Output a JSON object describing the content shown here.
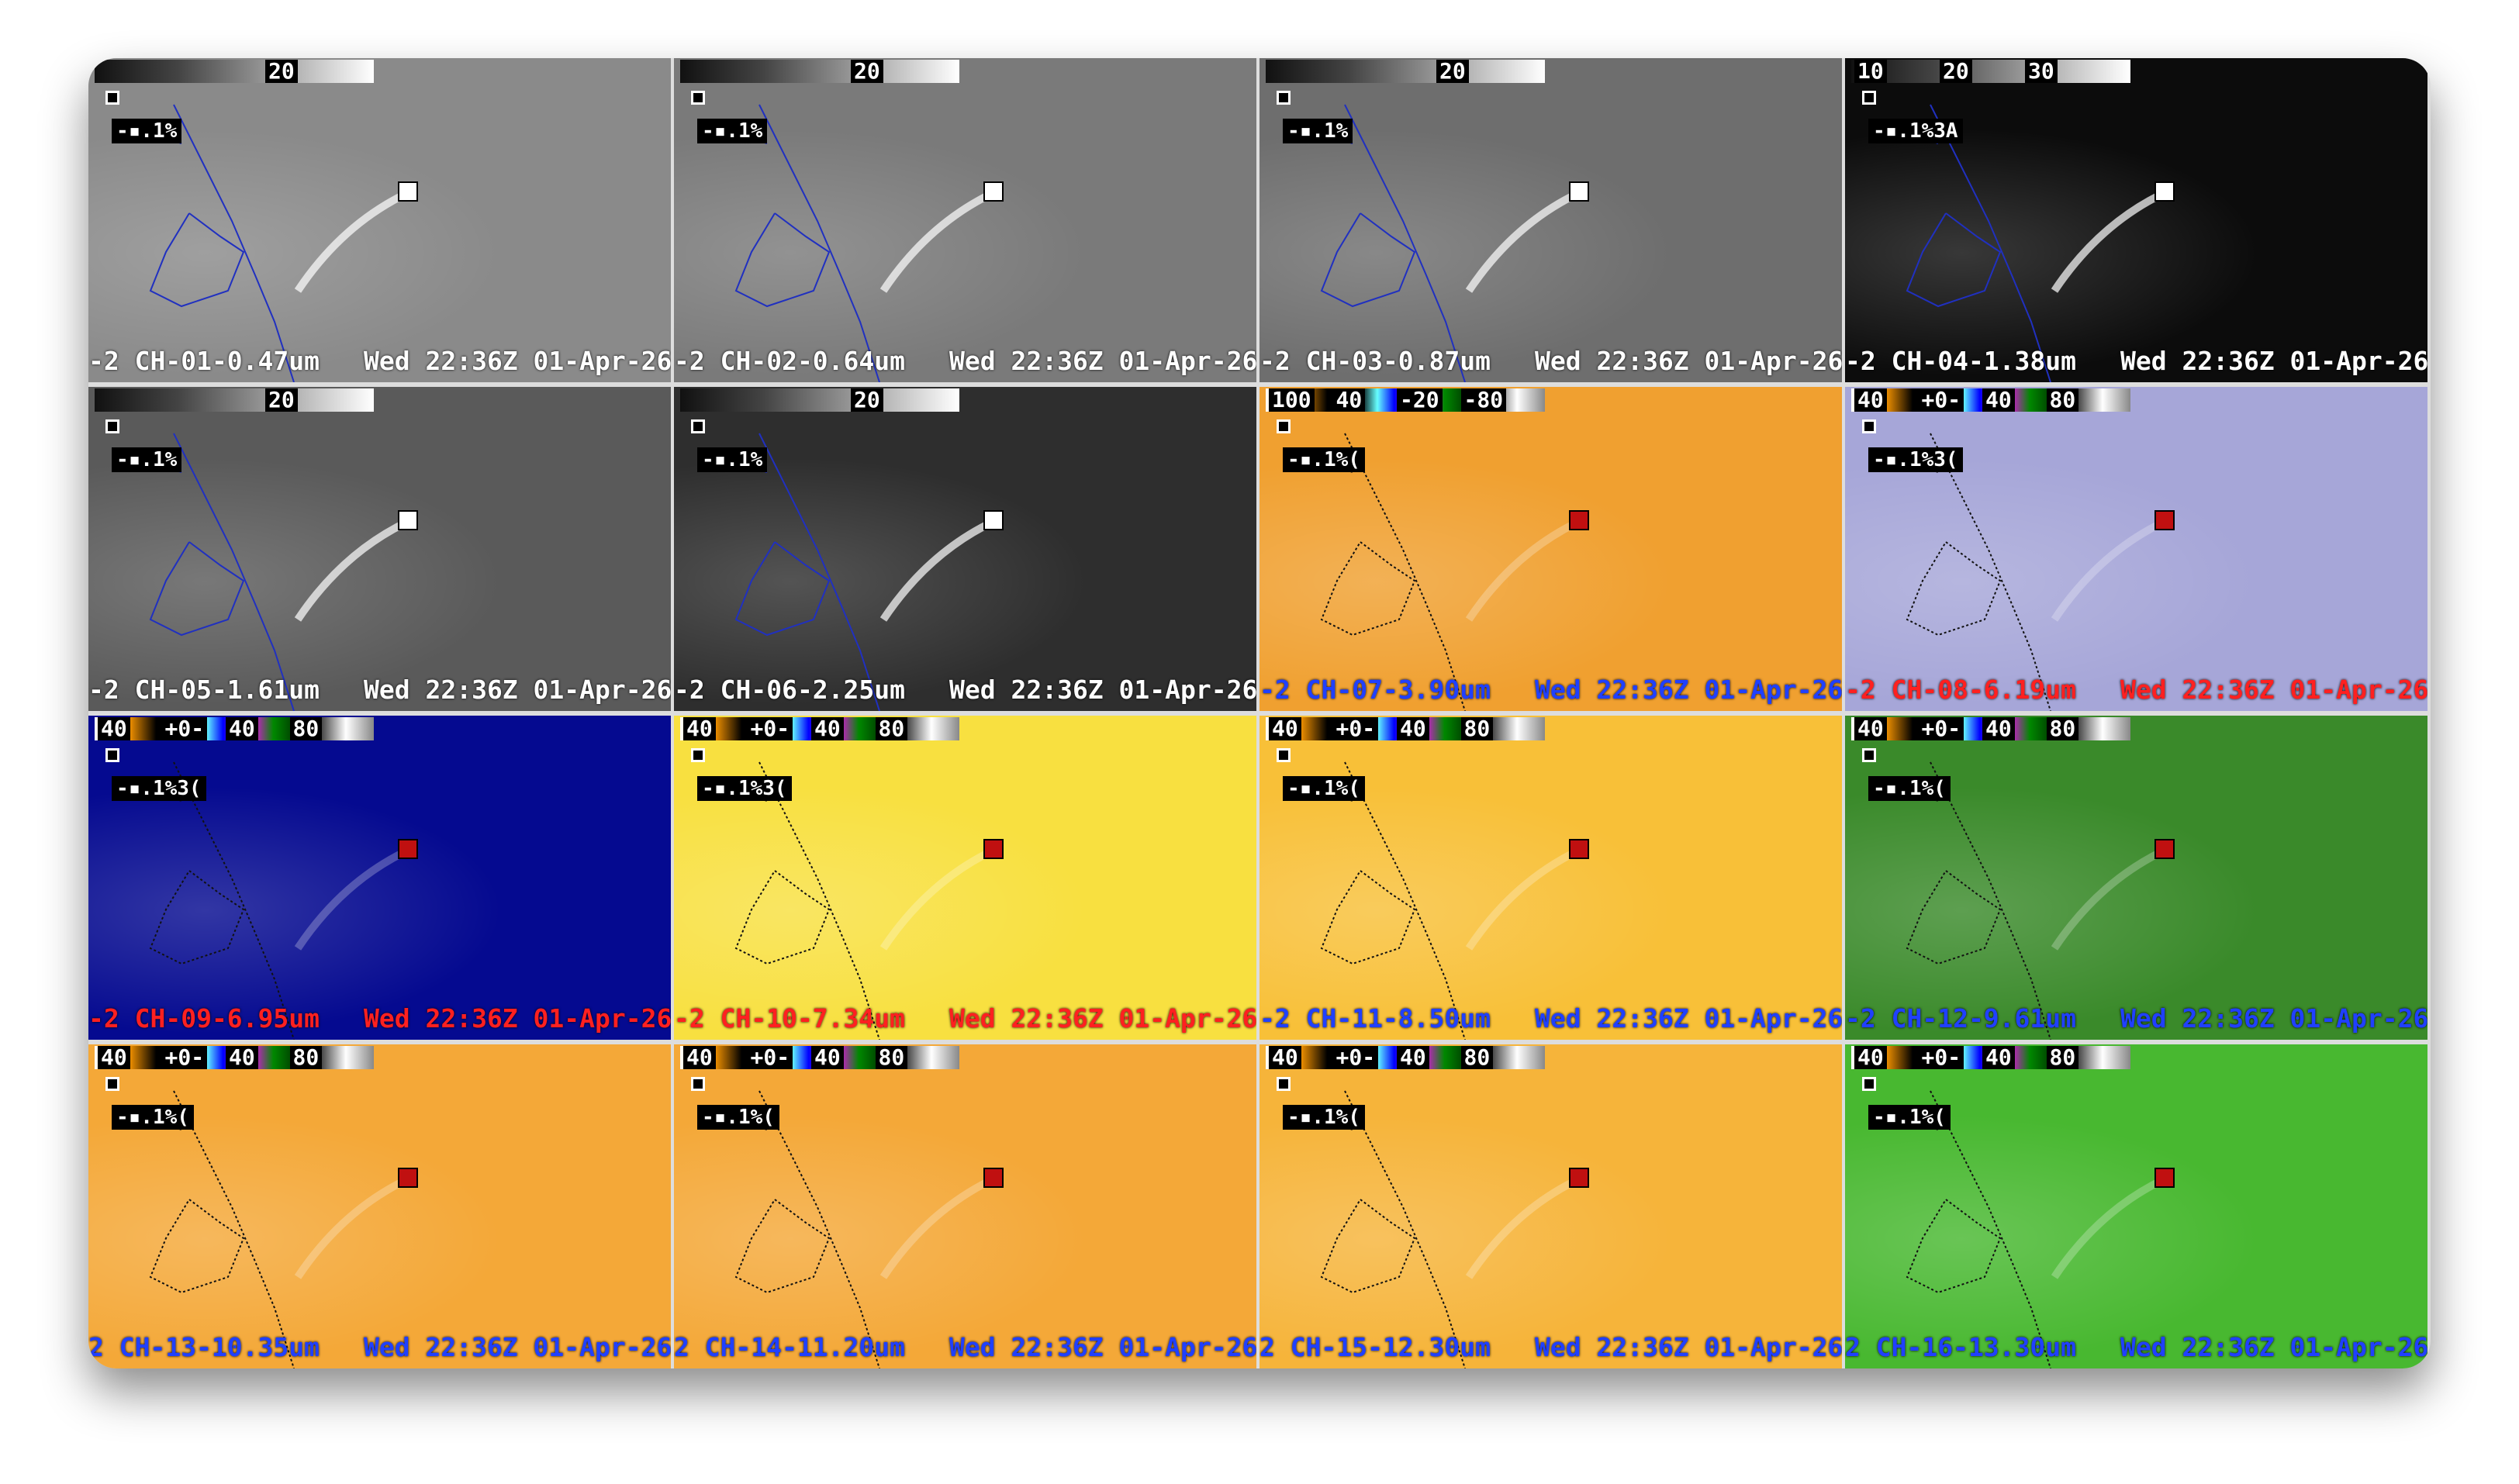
{
  "panels": [
    {
      "colorbar": [
        "20"
      ],
      "tag": "-▪.1%",
      "channel": "-2 CH-01-0.47um",
      "time": "Wed 22:36Z 01-Apr-26",
      "background": "#8a8a8a",
      "caption_color": "#ffffff"
    },
    {
      "colorbar": [
        "20"
      ],
      "tag": "-▪.1%",
      "channel": "-2 CH-02-0.64um",
      "time": "Wed 22:36Z 01-Apr-26",
      "background": "#7a7a7a",
      "caption_color": "#ffffff"
    },
    {
      "colorbar": [
        "20"
      ],
      "tag": "-▪.1%",
      "channel": "-2 CH-03-0.87um",
      "time": "Wed 22:36Z 01-Apr-26",
      "background": "#6e6e6e",
      "caption_color": "#ffffff"
    },
    {
      "colorbar": [
        "10",
        "20",
        "30"
      ],
      "tag": "-▪.1%3A",
      "channel": "-2 CH-04-1.38um",
      "time": "Wed 22:36Z 01-Apr-26",
      "background": "#0c0c0c",
      "caption_color": "#ffffff"
    },
    {
      "colorbar": [
        "20"
      ],
      "tag": "-▪.1%",
      "channel": "-2 CH-05-1.61um",
      "time": "Wed 22:36Z 01-Apr-26",
      "background": "#5a5a5a",
      "caption_color": "#ffffff"
    },
    {
      "colorbar": [
        "20"
      ],
      "tag": "-▪.1%",
      "channel": "-2 CH-06-2.25um",
      "time": "Wed 22:36Z 01-Apr-26",
      "background": "#2e2e2e",
      "caption_color": "#ffffff"
    },
    {
      "colorbar": [
        "100",
        "40",
        "-20",
        "-80"
      ],
      "tag": "-▪.1%(",
      "channel": "-2 CH-07-3.90um",
      "time": "Wed 22:36Z 01-Apr-26",
      "background": "#f0a030",
      "caption_color": "#2040ff"
    },
    {
      "colorbar": [
        "40",
        "+0-",
        "40",
        "80"
      ],
      "tag": "-▪.1%3(",
      "channel": "-2 CH-08-6.19um",
      "time": "Wed 22:36Z 01-Apr-26",
      "background": "#a6a6d8",
      "caption_color": "#ff2020"
    },
    {
      "colorbar": [
        "40",
        "+0-",
        "40",
        "80"
      ],
      "tag": "-▪.1%3(",
      "channel": "-2 CH-09-6.95um",
      "time": "Wed 22:36Z 01-Apr-26",
      "background": "#050a90",
      "caption_color": "#ff2020"
    },
    {
      "colorbar": [
        "40",
        "+0-",
        "40",
        "80"
      ],
      "tag": "-▪.1%3(",
      "channel": "-2 CH-10-7.34um",
      "time": "Wed 22:36Z 01-Apr-26",
      "background": "#f8e040",
      "caption_color": "#ff2020"
    },
    {
      "colorbar": [
        "40",
        "+0-",
        "40",
        "80"
      ],
      "tag": "-▪.1%(",
      "channel": "-2 CH-11-8.50um",
      "time": "Wed 22:36Z 01-Apr-26",
      "background": "#f8c038",
      "caption_color": "#2040ff"
    },
    {
      "colorbar": [
        "40",
        "+0-",
        "40",
        "80"
      ],
      "tag": "-▪.1%(",
      "channel": "-2 CH-12-9.61um",
      "time": "Wed 22:36Z 01-Apr-26",
      "background": "#3a8a2a",
      "caption_color": "#2040ff"
    },
    {
      "colorbar": [
        "40",
        "+0-",
        "40",
        "80"
      ],
      "tag": "-▪.1%(",
      "channel": "2 CH-13-10.35um",
      "time": "Wed 22:36Z 01-Apr-26",
      "background": "#f4a838",
      "caption_color": "#2040ff"
    },
    {
      "colorbar": [
        "40",
        "+0-",
        "40",
        "80"
      ],
      "tag": "-▪.1%(",
      "channel": "2 CH-14-11.20um",
      "time": "Wed 22:36Z 01-Apr-26",
      "background": "#f4a838",
      "caption_color": "#2040ff"
    },
    {
      "colorbar": [
        "40",
        "+0-",
        "40",
        "80"
      ],
      "tag": "-▪.1%(",
      "channel": "2 CH-15-12.30um",
      "time": "Wed 22:36Z 01-Apr-26",
      "background": "#f6b43a",
      "caption_color": "#2040ff"
    },
    {
      "colorbar": [
        "40",
        "+0-",
        "40",
        "80"
      ],
      "tag": "-▪.1%(",
      "channel": "2 CH-16-13.30um",
      "time": "Wed 22:36Z 01-Apr-26",
      "background": "#48b830",
      "caption_color": "#2040ff"
    }
  ]
}
